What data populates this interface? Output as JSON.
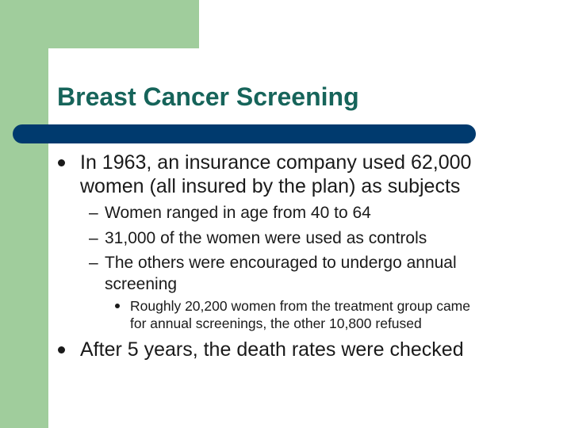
{
  "slide": {
    "title": "Breast Cancer Screening",
    "bullets": [
      {
        "line1": "In 1963, an insurance company used 62,000",
        "line2": "women (all insured by the plan) as subjects"
      },
      {
        "line1": "After 5 years, the death rates were checked"
      }
    ],
    "sub_bullets": [
      {
        "line1": "Women ranged in age from 40 to 64"
      },
      {
        "line1": "31,000 of the women were used as controls"
      },
      {
        "line1": "The others were encouraged to undergo annual",
        "line2": "screening"
      }
    ],
    "sub_sub_bullets": [
      {
        "line1": "Roughly 20,200 women from the treatment group came",
        "line2": "for annual screenings, the other 10,800 refused"
      }
    ],
    "dash_glyph": "–"
  },
  "colors": {
    "accent_green": "#a0cd9c",
    "title_color": "#16645a",
    "title_bar": "#003a6e",
    "text": "#1a1a1a"
  }
}
